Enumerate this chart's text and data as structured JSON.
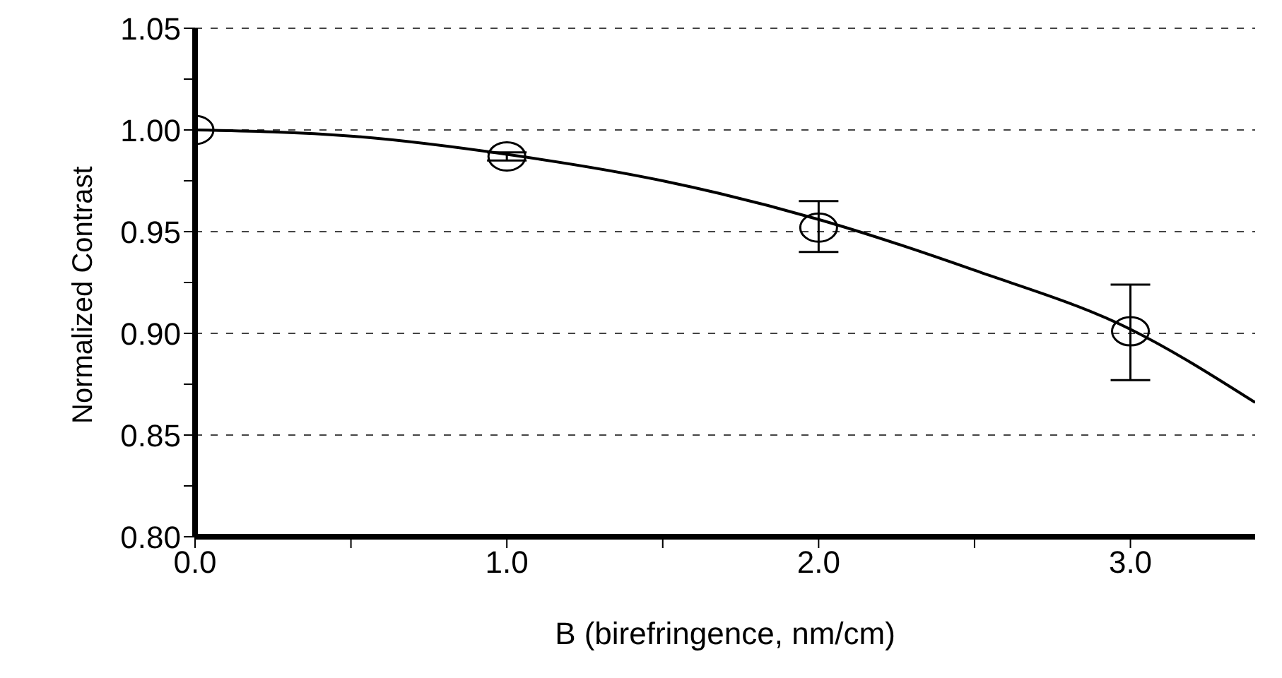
{
  "chart_data": {
    "type": "scatter",
    "xlabel": "B (birefringence, nm/cm)",
    "ylabel": "Normalized Contrast",
    "xlim": [
      0,
      3.4
    ],
    "xticks": [
      {
        "value": 0,
        "label": "0.0"
      },
      {
        "value": 0.5,
        "label": null
      },
      {
        "value": 1,
        "label": "1.0"
      },
      {
        "value": 1.5,
        "label": null
      },
      {
        "value": 2,
        "label": "2.0"
      },
      {
        "value": 2.5,
        "label": null
      },
      {
        "value": 3,
        "label": "3.0"
      }
    ],
    "ylim": [
      0.8,
      1.05
    ],
    "yticks": [
      {
        "value": 0.8,
        "label": "0.80"
      },
      {
        "value": 0.825,
        "label": null
      },
      {
        "value": 0.85,
        "label": "0.85"
      },
      {
        "value": 0.875,
        "label": null
      },
      {
        "value": 0.9,
        "label": "0.90"
      },
      {
        "value": 0.925,
        "label": null
      },
      {
        "value": 0.95,
        "label": "0.95"
      },
      {
        "value": 0.975,
        "label": null
      },
      {
        "value": 1,
        "label": "1.00"
      },
      {
        "value": 1.025,
        "label": null
      },
      {
        "value": 1.05,
        "label": "1.05"
      }
    ],
    "grid": "y",
    "marker": "circle",
    "series": [
      {
        "color": "#000000",
        "x": [
          0,
          1,
          2,
          3
        ],
        "values": [
          1.0,
          0.987,
          0.952,
          0.901
        ],
        "errors": [
          null,
          0.002,
          [
            0.94,
            0.965
          ],
          [
            0.877,
            0.924
          ]
        ]
      },
      {
        "type": "line",
        "color": "#000000",
        "marker": "none",
        "line_style": "solid",
        "x": [
          0,
          0.5,
          1,
          1.5,
          2,
          2.5,
          3,
          3.4
        ],
        "values": [
          1.0,
          0.997,
          0.988,
          0.975,
          0.956,
          0.931,
          0.902,
          0.866
        ]
      }
    ]
  }
}
